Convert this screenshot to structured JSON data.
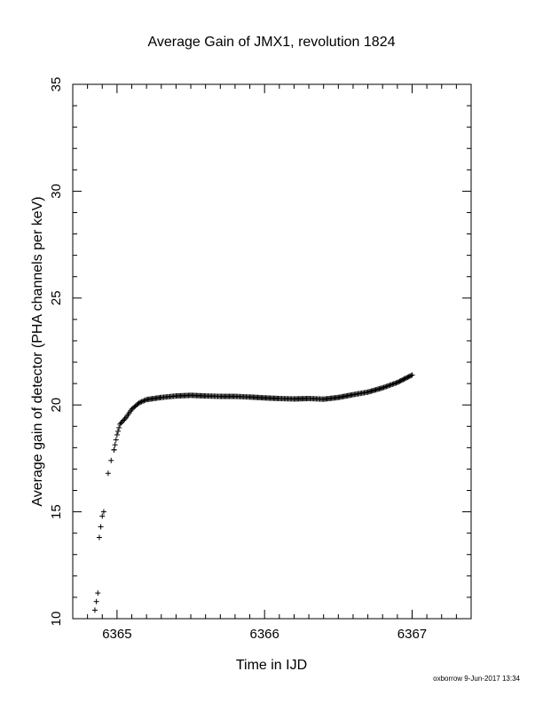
{
  "chart_data": {
    "type": "scatter",
    "title": "Average Gain of JMX1, revolution 1824",
    "xlabel": "Time in IJD",
    "ylabel": "Average gain of detector (PHA channels per keV)",
    "xlim": [
      6364.7,
      6367.4
    ],
    "ylim": [
      10,
      35
    ],
    "xticks": [
      6365,
      6366,
      6367
    ],
    "yticks": [
      10,
      15,
      20,
      25,
      30,
      35
    ],
    "grid": false,
    "marker": "plus",
    "knots": [
      [
        6364.85,
        10.4
      ],
      [
        6364.86,
        10.8
      ],
      [
        6364.87,
        11.2
      ],
      [
        6364.88,
        13.8
      ],
      [
        6364.89,
        14.3
      ],
      [
        6364.9,
        14.8
      ],
      [
        6364.91,
        15.0
      ],
      [
        6364.94,
        16.8
      ],
      [
        6364.96,
        17.4
      ],
      [
        6364.98,
        17.9
      ],
      [
        6365.0,
        18.6
      ],
      [
        6365.02,
        19.1
      ],
      [
        6365.06,
        19.4
      ],
      [
        6365.1,
        19.8
      ],
      [
        6365.15,
        20.1
      ],
      [
        6365.2,
        20.25
      ],
      [
        6365.3,
        20.35
      ],
      [
        6365.4,
        20.42
      ],
      [
        6365.5,
        20.45
      ],
      [
        6365.6,
        20.42
      ],
      [
        6365.7,
        20.4
      ],
      [
        6365.8,
        20.4
      ],
      [
        6365.9,
        20.37
      ],
      [
        6366.0,
        20.33
      ],
      [
        6366.1,
        20.3
      ],
      [
        6366.2,
        20.28
      ],
      [
        6366.3,
        20.3
      ],
      [
        6366.4,
        20.27
      ],
      [
        6366.5,
        20.35
      ],
      [
        6366.6,
        20.48
      ],
      [
        6366.7,
        20.6
      ],
      [
        6366.8,
        20.8
      ],
      [
        6366.9,
        21.05
      ],
      [
        6367.0,
        21.4
      ]
    ]
  },
  "footer": {
    "credit": "oxborrow  9-Jun-2017 13:34"
  }
}
